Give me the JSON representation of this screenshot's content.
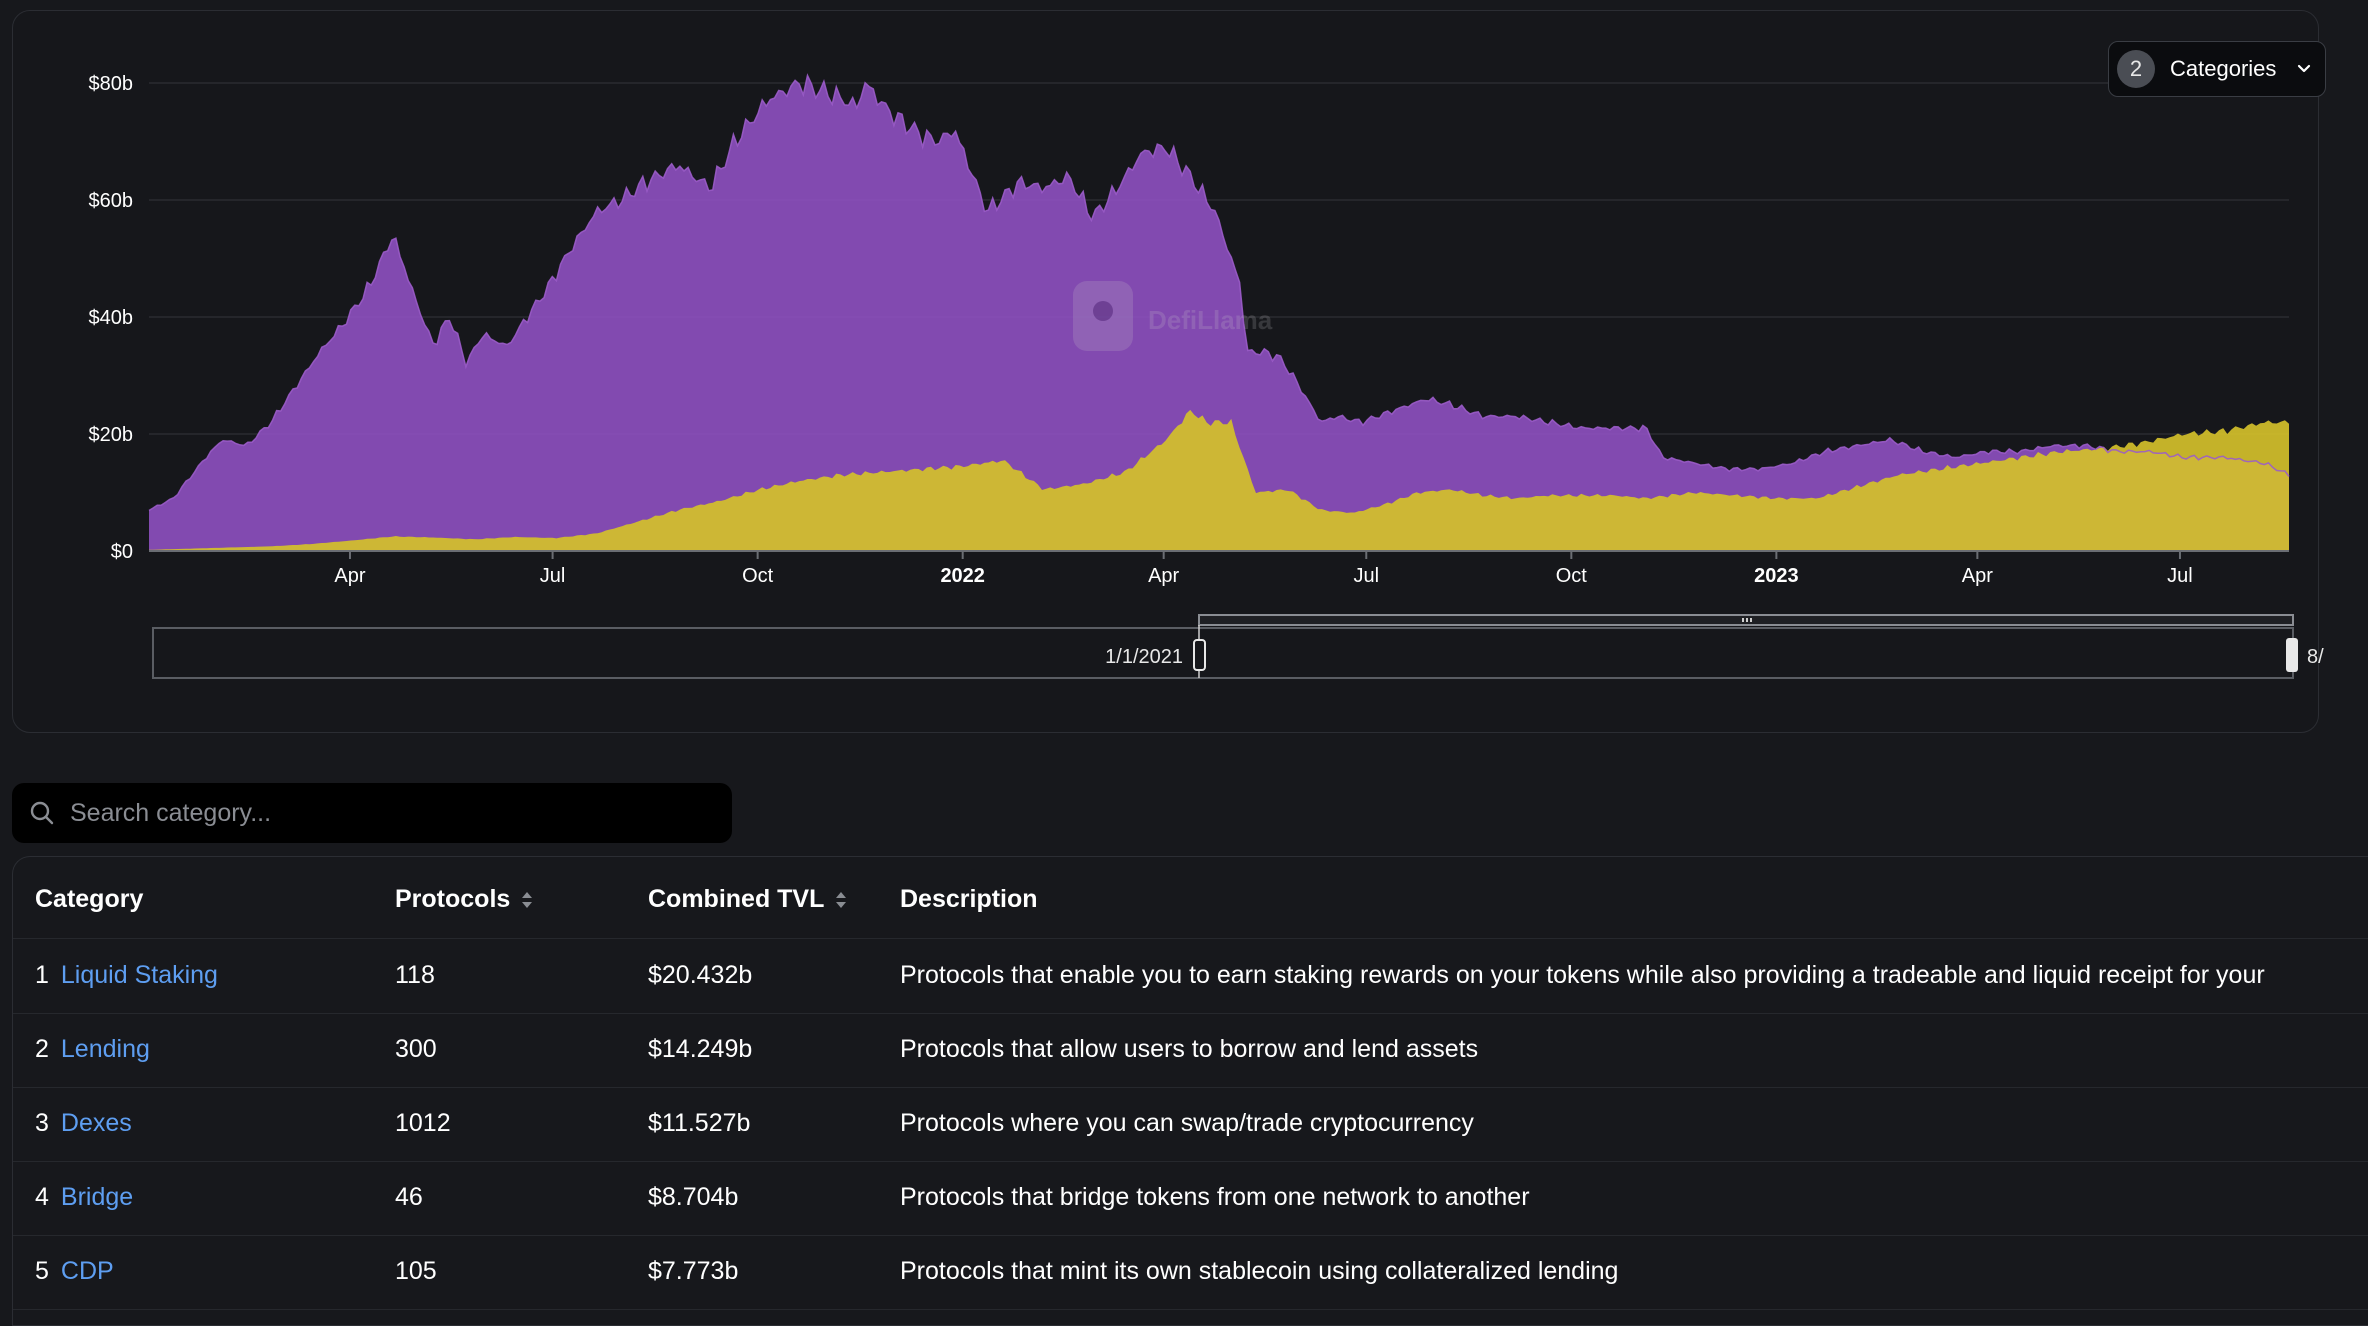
{
  "categories_dropdown": {
    "count": "2",
    "label": "Categories",
    "icon": "chevron-down-icon"
  },
  "watermark": "DefiLlama",
  "range_slider": {
    "start_label": "1/1/2021",
    "end_label": "8/"
  },
  "search": {
    "placeholder": "Search category...",
    "value": ""
  },
  "table": {
    "headers": {
      "category": "Category",
      "protocols": "Protocols",
      "tvl": "Combined TVL",
      "description": "Description"
    },
    "rows": [
      {
        "rank": "1",
        "name": "Liquid Staking",
        "protocols": "118",
        "tvl": "$20.432b",
        "description": "Protocols that enable you to earn staking rewards on your tokens while also providing a tradeable and liquid receipt for your"
      },
      {
        "rank": "2",
        "name": "Lending",
        "protocols": "300",
        "tvl": "$14.249b",
        "description": "Protocols that allow users to borrow and lend assets"
      },
      {
        "rank": "3",
        "name": "Dexes",
        "protocols": "1012",
        "tvl": "$11.527b",
        "description": "Protocols where you can swap/trade cryptocurrency"
      },
      {
        "rank": "4",
        "name": "Bridge",
        "protocols": "46",
        "tvl": "$8.704b",
        "description": "Protocols that bridge tokens from one network to another"
      },
      {
        "rank": "5",
        "name": "CDP",
        "protocols": "105",
        "tvl": "$7.773b",
        "description": "Protocols that mint its own stablecoin using collateralized lending"
      }
    ]
  },
  "chart_data": {
    "type": "area",
    "y_ticks": [
      0,
      20,
      40,
      60,
      80
    ],
    "y_tick_labels": [
      "$0",
      "$20b",
      "$40b",
      "$60b",
      "$80b"
    ],
    "ylim": [
      0,
      80
    ],
    "x_ticks": [
      {
        "t": 2021.247,
        "label": "Apr",
        "bold": false
      },
      {
        "t": 2021.496,
        "label": "Jul",
        "bold": false
      },
      {
        "t": 2021.748,
        "label": "Oct",
        "bold": false
      },
      {
        "t": 2022.0,
        "label": "2022",
        "bold": true
      },
      {
        "t": 2022.247,
        "label": "Apr",
        "bold": false
      },
      {
        "t": 2022.496,
        "label": "Jul",
        "bold": false
      },
      {
        "t": 2022.748,
        "label": "Oct",
        "bold": false
      },
      {
        "t": 2023.0,
        "label": "2023",
        "bold": true
      },
      {
        "t": 2023.247,
        "label": "Apr",
        "bold": false
      },
      {
        "t": 2023.496,
        "label": "Jul",
        "bold": false
      }
    ],
    "xlim": [
      2021.0,
      2023.63
    ],
    "grid": true,
    "series": [
      {
        "color": "#8c4fbd",
        "x": [
          2021.0,
          2021.03,
          2021.07,
          2021.09,
          2021.12,
          2021.15,
          2021.18,
          2021.21,
          2021.24,
          2021.27,
          2021.3,
          2021.33,
          2021.35,
          2021.36,
          2021.37,
          2021.39,
          2021.41,
          2021.44,
          2021.46,
          2021.49,
          2021.52,
          2021.55,
          2021.58,
          2021.61,
          2021.65,
          2021.69,
          2021.72,
          2021.76,
          2021.8,
          2021.84,
          2021.87,
          2021.88,
          2021.91,
          2021.93,
          2021.95,
          2021.97,
          2021.99,
          2022.03,
          2022.07,
          2022.1,
          2022.13,
          2022.16,
          2022.19,
          2022.22,
          2022.25,
          2022.28,
          2022.31,
          2022.34,
          2022.35,
          2022.37,
          2022.39,
          2022.41,
          2022.44,
          2022.46,
          2022.49,
          2022.53,
          2022.57,
          2022.6,
          2022.64,
          2022.68,
          2022.72,
          2022.76,
          2022.8,
          2022.84,
          2022.86,
          2022.9,
          2022.94,
          2022.98,
          2023.02,
          2023.06,
          2023.1,
          2023.14,
          2023.18,
          2023.22,
          2023.26,
          2023.3,
          2023.34,
          2023.38,
          2023.42,
          2023.46,
          2023.5,
          2023.55,
          2023.6,
          2023.63
        ],
        "values": [
          7,
          9,
          16,
          19,
          18,
          22,
          28,
          34,
          39,
          45,
          54,
          42,
          35,
          38,
          40,
          32,
          37,
          35,
          39,
          45,
          52,
          58,
          60,
          63,
          66,
          62,
          70,
          77,
          80,
          78,
          76,
          80,
          75,
          73,
          71,
          70,
          72,
          58,
          63,
          62,
          64,
          57,
          62,
          68,
          69,
          64,
          58,
          46,
          34,
          34,
          33,
          29,
          22,
          23,
          22,
          24,
          26,
          25,
          23,
          23,
          22,
          21,
          21,
          21,
          16,
          15,
          14,
          14,
          15,
          17,
          18,
          19,
          17,
          16,
          17,
          17,
          18,
          18,
          17,
          17,
          16,
          16,
          15,
          13
        ],
        "filled_to": "yellow_top"
      },
      {
        "color": "#d4c02a",
        "x": [
          2021.0,
          2021.05,
          2021.1,
          2021.15,
          2021.2,
          2021.25,
          2021.3,
          2021.35,
          2021.4,
          2021.45,
          2021.5,
          2021.55,
          2021.6,
          2021.65,
          2021.7,
          2021.75,
          2021.8,
          2021.85,
          2021.9,
          2021.95,
          2022.0,
          2022.05,
          2022.1,
          2022.15,
          2022.2,
          2022.25,
          2022.28,
          2022.3,
          2022.33,
          2022.36,
          2022.4,
          2022.44,
          2022.48,
          2022.52,
          2022.56,
          2022.6,
          2022.64,
          2022.68,
          2022.72,
          2022.76,
          2022.8,
          2022.84,
          2022.9,
          2022.95,
          2023.0,
          2023.05,
          2023.1,
          2023.15,
          2023.2,
          2023.25,
          2023.3,
          2023.35,
          2023.4,
          2023.45,
          2023.5,
          2023.55,
          2023.6,
          2023.63
        ],
        "values": [
          0.2,
          0.4,
          0.6,
          0.8,
          1.2,
          1.8,
          2.5,
          2.3,
          2.0,
          2.4,
          2.2,
          3.0,
          5.0,
          7.0,
          8.5,
          10.5,
          12.0,
          13.0,
          13.5,
          14.0,
          14.5,
          15.5,
          10.5,
          11.5,
          13.5,
          19.0,
          24.0,
          22.0,
          22.0,
          10.0,
          10.5,
          7.0,
          6.5,
          8.0,
          10.0,
          10.5,
          9.5,
          9.0,
          9.5,
          9.5,
          9.5,
          9.0,
          10.0,
          9.5,
          9.0,
          9.0,
          11.0,
          13.0,
          14.0,
          15.0,
          16.0,
          17.0,
          17.5,
          18.5,
          20.0,
          20.5,
          22.0,
          22.0
        ]
      }
    ]
  }
}
